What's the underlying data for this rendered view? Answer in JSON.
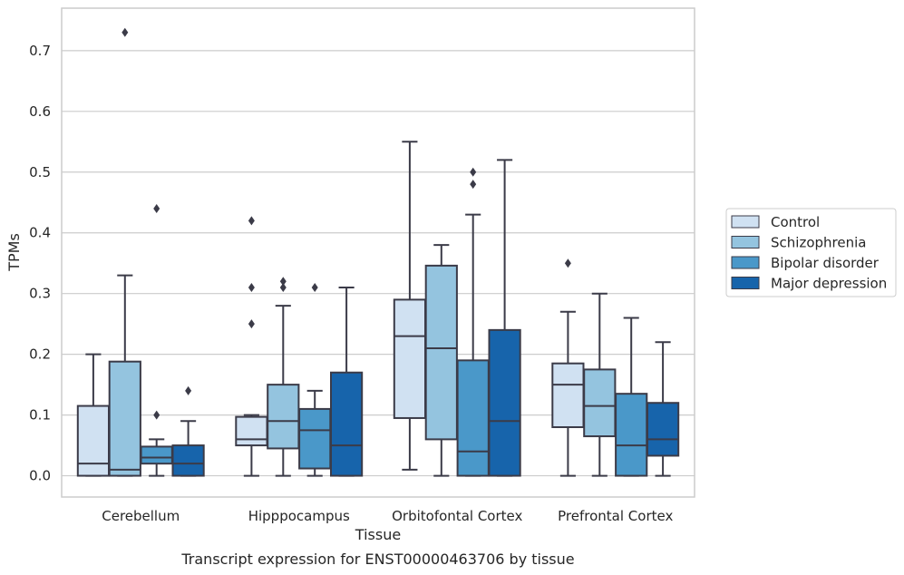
{
  "chart_data": {
    "type": "boxplot",
    "caption": "Transcript expression for ENST00000463706 by tissue",
    "xlabel": "Tissue",
    "ylabel": "TPMs",
    "ylim": [
      -0.035,
      0.77
    ],
    "yticks": [
      0.0,
      0.1,
      0.2,
      0.3,
      0.4,
      0.5,
      0.6,
      0.7
    ],
    "yticklabels": [
      "0.0",
      "0.1",
      "0.2",
      "0.3",
      "0.4",
      "0.5",
      "0.6",
      "0.7"
    ],
    "grid": true,
    "legend_position": "right",
    "categories": [
      "Cerebellum",
      "Hipppocampus",
      "Orbitofontal Cortex",
      "Prefrontal Cortex"
    ],
    "series": [
      {
        "name": "Control",
        "color": "#d0e1f2",
        "boxes": [
          {
            "q1": 0.0,
            "median": 0.02,
            "q3": 0.115,
            "whislo": 0.0,
            "whishi": 0.2,
            "fliers": []
          },
          {
            "q1": 0.05,
            "median": 0.06,
            "q3": 0.097,
            "whislo": 0.0,
            "whishi": 0.1,
            "fliers": [
              0.25,
              0.31,
              0.42
            ]
          },
          {
            "q1": 0.095,
            "median": 0.23,
            "q3": 0.29,
            "whislo": 0.01,
            "whishi": 0.55,
            "fliers": []
          },
          {
            "q1": 0.08,
            "median": 0.15,
            "q3": 0.185,
            "whislo": 0.0,
            "whishi": 0.27,
            "fliers": [
              0.35
            ]
          }
        ]
      },
      {
        "name": "Schizophrenia",
        "color": "#94c4df",
        "boxes": [
          {
            "q1": 0.0,
            "median": 0.01,
            "q3": 0.188,
            "whislo": 0.0,
            "whishi": 0.33,
            "fliers": [
              0.73
            ]
          },
          {
            "q1": 0.045,
            "median": 0.09,
            "q3": 0.15,
            "whislo": 0.0,
            "whishi": 0.28,
            "fliers": [
              0.31,
              0.32
            ]
          },
          {
            "q1": 0.06,
            "median": 0.21,
            "q3": 0.346,
            "whislo": 0.0,
            "whishi": 0.38,
            "fliers": []
          },
          {
            "q1": 0.065,
            "median": 0.115,
            "q3": 0.175,
            "whislo": 0.0,
            "whishi": 0.3,
            "fliers": []
          }
        ]
      },
      {
        "name": "Bipolar disorder",
        "color": "#4a98c9",
        "boxes": [
          {
            "q1": 0.02,
            "median": 0.03,
            "q3": 0.048,
            "whislo": 0.0,
            "whishi": 0.06,
            "fliers": [
              0.1,
              0.44
            ]
          },
          {
            "q1": 0.012,
            "median": 0.075,
            "q3": 0.11,
            "whislo": 0.0,
            "whishi": 0.14,
            "fliers": [
              0.31
            ]
          },
          {
            "q1": 0.0,
            "median": 0.04,
            "q3": 0.19,
            "whislo": 0.0,
            "whishi": 0.43,
            "fliers": [
              0.48,
              0.5
            ]
          },
          {
            "q1": 0.0,
            "median": 0.05,
            "q3": 0.135,
            "whislo": 0.0,
            "whishi": 0.26,
            "fliers": []
          }
        ]
      },
      {
        "name": "Major depression",
        "color": "#1764ab",
        "boxes": [
          {
            "q1": 0.0,
            "median": 0.02,
            "q3": 0.05,
            "whislo": 0.0,
            "whishi": 0.09,
            "fliers": [
              0.14
            ]
          },
          {
            "q1": 0.0,
            "median": 0.05,
            "q3": 0.17,
            "whislo": 0.0,
            "whishi": 0.31,
            "fliers": []
          },
          {
            "q1": 0.0,
            "median": 0.09,
            "q3": 0.24,
            "whislo": 0.0,
            "whishi": 0.52,
            "fliers": []
          },
          {
            "q1": 0.033,
            "median": 0.06,
            "q3": 0.12,
            "whislo": 0.0,
            "whishi": 0.22,
            "fliers": []
          }
        ]
      }
    ]
  }
}
